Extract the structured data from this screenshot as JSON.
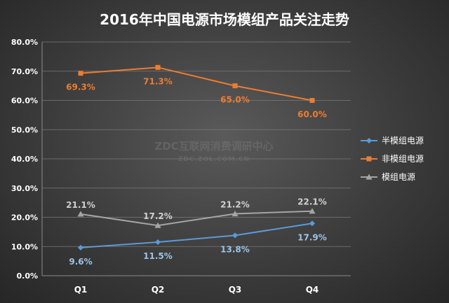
{
  "chart_data": {
    "type": "line",
    "title": "2016年中国电源市场模组产品关注走势",
    "categories": [
      "Q1",
      "Q2",
      "Q3",
      "Q4"
    ],
    "ylim": [
      0,
      80
    ],
    "yticks": [
      "0.0%",
      "10.0%",
      "20.0%",
      "30.0%",
      "40.0%",
      "50.0%",
      "60.0%",
      "70.0%",
      "80.0%"
    ],
    "grid": true,
    "legend_position": "right",
    "series": [
      {
        "name": "半模组电源",
        "marker": "diamond",
        "color": "#5b9bd5",
        "label_color": "#9dc3e6",
        "values": [
          9.6,
          11.5,
          13.8,
          17.9
        ],
        "labels": [
          "9.6%",
          "11.5%",
          "13.8%",
          "17.9%"
        ],
        "label_pos": "below"
      },
      {
        "name": "非模组电源",
        "marker": "square",
        "color": "#ed7d31",
        "label_color": "#ed7d31",
        "values": [
          69.3,
          71.3,
          65.0,
          60.0
        ],
        "labels": [
          "69.3%",
          "71.3%",
          "65.0%",
          "60.0%"
        ],
        "label_pos": "below"
      },
      {
        "name": "模组电源",
        "marker": "triangle",
        "color": "#a5a5a5",
        "label_color": "#d0d0d0",
        "values": [
          21.1,
          17.2,
          21.2,
          22.1
        ],
        "labels": [
          "21.1%",
          "17.2%",
          "21.2%",
          "22.1%"
        ],
        "label_pos": "above"
      }
    ]
  },
  "watermark": {
    "line1": "ZDC互联网消费调研中心",
    "line2": "ZDC.ZOL.COM.CN"
  }
}
